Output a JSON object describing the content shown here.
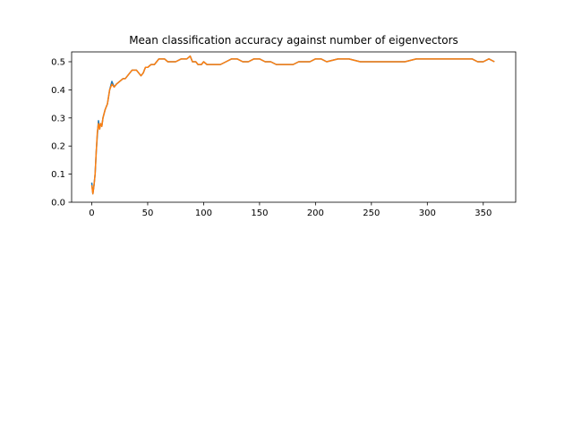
{
  "chart_data": {
    "type": "line",
    "title": "Mean classification accuracy against number of eigenvectors",
    "xlabel": "",
    "ylabel": "",
    "xlim": [
      -18,
      379
    ],
    "ylim": [
      0.0,
      0.535
    ],
    "x_ticks": [
      0,
      50,
      100,
      150,
      200,
      250,
      300,
      350
    ],
    "y_ticks": [
      0.0,
      0.1,
      0.2,
      0.3,
      0.4,
      0.5
    ],
    "x_tick_labels": [
      "0",
      "50",
      "100",
      "150",
      "200",
      "250",
      "300",
      "350"
    ],
    "y_tick_labels": [
      "0.0",
      "0.1",
      "0.2",
      "0.3",
      "0.4",
      "0.5"
    ],
    "grid": false,
    "legend": "none",
    "series": [
      {
        "color": "#1f77b4",
        "x": [
          0,
          1,
          2,
          3,
          4,
          5,
          6,
          7,
          8,
          9,
          10,
          12,
          14,
          16,
          18,
          20,
          22,
          25,
          28,
          30,
          32,
          34,
          36,
          38,
          40,
          42,
          44,
          46,
          48,
          50,
          53,
          56,
          58,
          60,
          63,
          65,
          68,
          70,
          75,
          80,
          85,
          88,
          90,
          93,
          95,
          98,
          100,
          103,
          105,
          110,
          115,
          120,
          125,
          130,
          135,
          140,
          145,
          150,
          155,
          160,
          165,
          170,
          175,
          180,
          185,
          190,
          195,
          200,
          205,
          210,
          220,
          230,
          240,
          250,
          260,
          270,
          280,
          290,
          300,
          310,
          320,
          330,
          340,
          345,
          350,
          355,
          360
        ],
        "y": [
          0.07,
          0.03,
          0.06,
          0.1,
          0.18,
          0.24,
          0.29,
          0.26,
          0.28,
          0.27,
          0.3,
          0.33,
          0.35,
          0.4,
          0.43,
          0.41,
          0.42,
          0.43,
          0.44,
          0.44,
          0.45,
          0.46,
          0.47,
          0.47,
          0.47,
          0.46,
          0.45,
          0.46,
          0.48,
          0.48,
          0.49,
          0.49,
          0.5,
          0.51,
          0.51,
          0.51,
          0.5,
          0.5,
          0.5,
          0.51,
          0.51,
          0.52,
          0.5,
          0.5,
          0.49,
          0.49,
          0.5,
          0.49,
          0.49,
          0.49,
          0.49,
          0.5,
          0.51,
          0.51,
          0.5,
          0.5,
          0.51,
          0.51,
          0.5,
          0.5,
          0.49,
          0.49,
          0.49,
          0.49,
          0.5,
          0.5,
          0.5,
          0.51,
          0.51,
          0.5,
          0.51,
          0.51,
          0.5,
          0.5,
          0.5,
          0.5,
          0.5,
          0.51,
          0.51,
          0.51,
          0.51,
          0.51,
          0.51,
          0.5,
          0.5,
          0.51,
          0.5
        ]
      },
      {
        "color": "#ff7f0e",
        "x": [
          0,
          1,
          2,
          3,
          4,
          5,
          6,
          7,
          8,
          9,
          10,
          12,
          14,
          16,
          18,
          20,
          22,
          25,
          28,
          30,
          32,
          34,
          36,
          38,
          40,
          42,
          44,
          46,
          48,
          50,
          53,
          56,
          58,
          60,
          63,
          65,
          68,
          70,
          75,
          80,
          85,
          88,
          90,
          93,
          95,
          98,
          100,
          103,
          105,
          110,
          115,
          120,
          125,
          130,
          135,
          140,
          145,
          150,
          155,
          160,
          165,
          170,
          175,
          180,
          185,
          190,
          195,
          200,
          205,
          210,
          220,
          230,
          240,
          250,
          260,
          270,
          280,
          290,
          300,
          310,
          320,
          330,
          340,
          345,
          350,
          355,
          360
        ],
        "y": [
          0.06,
          0.03,
          0.06,
          0.1,
          0.18,
          0.25,
          0.28,
          0.26,
          0.28,
          0.27,
          0.3,
          0.33,
          0.35,
          0.4,
          0.42,
          0.41,
          0.42,
          0.43,
          0.44,
          0.44,
          0.45,
          0.46,
          0.47,
          0.47,
          0.47,
          0.46,
          0.45,
          0.46,
          0.48,
          0.48,
          0.49,
          0.49,
          0.5,
          0.51,
          0.51,
          0.51,
          0.5,
          0.5,
          0.5,
          0.51,
          0.51,
          0.52,
          0.5,
          0.5,
          0.49,
          0.49,
          0.5,
          0.49,
          0.49,
          0.49,
          0.49,
          0.5,
          0.51,
          0.51,
          0.5,
          0.5,
          0.51,
          0.51,
          0.5,
          0.5,
          0.49,
          0.49,
          0.49,
          0.49,
          0.5,
          0.5,
          0.5,
          0.51,
          0.51,
          0.5,
          0.51,
          0.51,
          0.5,
          0.5,
          0.5,
          0.5,
          0.5,
          0.51,
          0.51,
          0.51,
          0.51,
          0.51,
          0.51,
          0.5,
          0.5,
          0.51,
          0.5
        ]
      }
    ]
  }
}
